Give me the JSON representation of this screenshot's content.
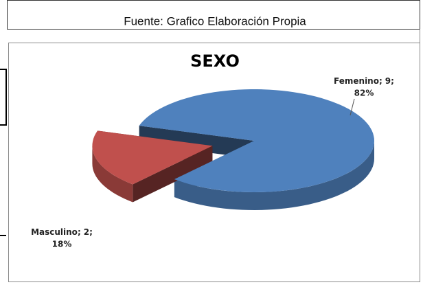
{
  "chart_data": {
    "type": "pie",
    "source": "Fuente: Grafico Elaboración Propia",
    "title": "SEXO",
    "categories": [
      "Femenino",
      "Masculino"
    ],
    "values": [
      9,
      2
    ],
    "percent_labels": [
      "82%",
      "18%"
    ],
    "label_separator": ";",
    "colors": [
      "#4f81bd",
      "#c0504d"
    ]
  }
}
